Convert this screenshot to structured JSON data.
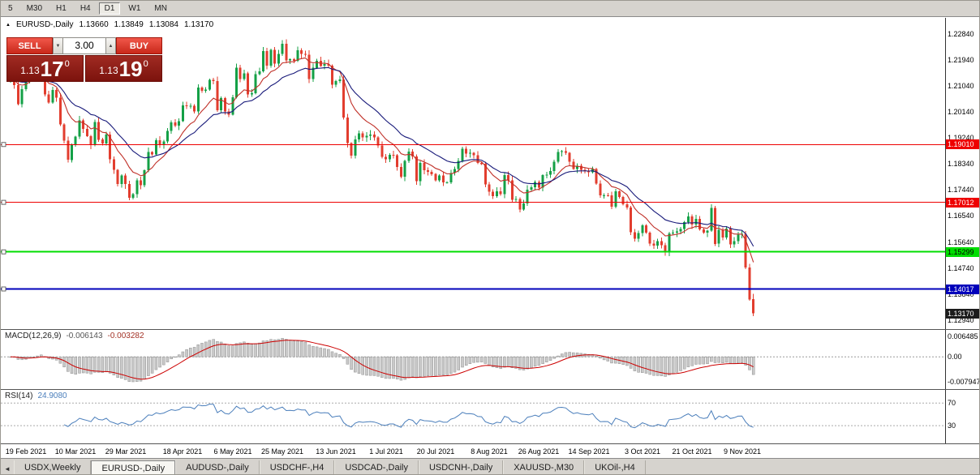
{
  "toolbar": {
    "timeframes": [
      "5",
      "M30",
      "H1",
      "H4",
      "D1",
      "W1",
      "MN"
    ],
    "active": "D1"
  },
  "icons": {
    "ohlc_toggle": "▲",
    "volume_down": "▼",
    "volume_up": "▲",
    "tab_scroll_left": "◄"
  },
  "chart_header": {
    "symbol": "EURUSD-,Daily",
    "open": "1.13660",
    "high": "1.13849",
    "low": "1.13084",
    "close": "1.13170"
  },
  "trade_panel": {
    "sell_label": "SELL",
    "buy_label": "BUY",
    "volume": "3.00",
    "sell_price": {
      "big_figure": "1.13",
      "pips": "17",
      "pipette": "0"
    },
    "buy_price": {
      "big_figure": "1.13",
      "pips": "19",
      "pipette": "0"
    }
  },
  "price_axis": {
    "labels": [
      "1.22840",
      "1.21940",
      "1.21040",
      "1.20140",
      "1.19240",
      "1.18340",
      "1.17440",
      "1.16540",
      "1.15640",
      "1.14740",
      "1.13840",
      "1.12940"
    ]
  },
  "levels": [
    {
      "price": 1.1901,
      "label": "1.19010",
      "color": "#ee0000",
      "text_color": "#ffffff",
      "width": 1
    },
    {
      "price": 1.17012,
      "label": "1.17012",
      "color": "#ee0000",
      "text_color": "#ffffff",
      "width": 1
    },
    {
      "price": 1.15299,
      "label": "1.15299",
      "color": "#00dd00",
      "text_color": "#000000",
      "width": 2
    },
    {
      "price": 1.14017,
      "label": "1.14017",
      "color": "#0000bb",
      "text_color": "#ffffff",
      "width": 2
    }
  ],
  "current_price_tag": {
    "price": 1.1317,
    "label": "1.13170",
    "bg": "#1c1c1c",
    "text_color": "#ffffff"
  },
  "macd_panel": {
    "label": "MACD(12,26,9)",
    "value_main": "-0.006143",
    "value_signal": "-0.003282",
    "axis_labels": [
      "0.006485",
      "0.00",
      "-0.007947"
    ]
  },
  "rsi_panel": {
    "label": "RSI(14)",
    "value": "24.9080",
    "levels": [
      "70",
      "30"
    ],
    "line_color": "#4a7ebb"
  },
  "date_axis": {
    "ticks": [
      {
        "label": "19 Feb 2021",
        "i": 4
      },
      {
        "label": "10 Mar 2021",
        "i": 17
      },
      {
        "label": "29 Mar 2021",
        "i": 30
      },
      {
        "label": "18 Apr 2021",
        "i": 45
      },
      {
        "label": "6 May 2021",
        "i": 58
      },
      {
        "label": "25 May 2021",
        "i": 71
      },
      {
        "label": "13 Jun 2021",
        "i": 85
      },
      {
        "label": "1 Jul 2021",
        "i": 98
      },
      {
        "label": "20 Jul 2021",
        "i": 111
      },
      {
        "label": "8 Aug 2021",
        "i": 125
      },
      {
        "label": "26 Aug 2021",
        "i": 138
      },
      {
        "label": "14 Sep 2021",
        "i": 151
      },
      {
        "label": "3 Oct 2021",
        "i": 165
      },
      {
        "label": "21 Oct 2021",
        "i": 178
      },
      {
        "label": "9 Nov 2021",
        "i": 191
      }
    ]
  },
  "tabs": [
    {
      "label": "USDX,Weekly",
      "active": false
    },
    {
      "label": "EURUSD-,Daily",
      "active": true
    },
    {
      "label": "AUDUSD-,Daily",
      "active": false
    },
    {
      "label": "USDCHF-,H4",
      "active": false
    },
    {
      "label": "USDCAD-,Daily",
      "active": false
    },
    {
      "label": "USDCNH-,Daily",
      "active": false
    },
    {
      "label": "XAUUSD-,M30",
      "active": false
    },
    {
      "label": "UKOil-,H4",
      "active": false
    }
  ],
  "chart_data": {
    "type": "candlestick",
    "symbol": "EURUSD-",
    "timeframe": "Daily",
    "ylim": [
      1.1263,
      1.2339
    ],
    "up_color": "#14a046",
    "down_color": "#e23d2e",
    "ma_fast_color": "#c03028",
    "ma_slow_color": "#181a7a",
    "first_open": 1.212,
    "closes": [
      1.2129,
      1.2107,
      1.204,
      1.2093,
      1.2119,
      1.2158,
      1.215,
      1.2166,
      1.2175,
      1.2074,
      1.2046,
      1.2089,
      1.2063,
      1.197,
      1.1915,
      1.1848,
      1.19,
      1.1928,
      1.1985,
      1.1955,
      1.193,
      1.1899,
      1.1979,
      1.1918,
      1.1905,
      1.1935,
      1.185,
      1.1813,
      1.1765,
      1.1794,
      1.1764,
      1.1717,
      1.173,
      1.1777,
      1.1761,
      1.1812,
      1.1875,
      1.1867,
      1.1916,
      1.1899,
      1.1912,
      1.1948,
      1.1978,
      1.1966,
      1.1982,
      1.2037,
      1.2034,
      1.2035,
      1.2015,
      1.2098,
      1.2087,
      1.2091,
      1.2125,
      1.2121,
      1.202,
      1.2062,
      1.2016,
      1.2004,
      1.2064,
      1.2166,
      1.2128,
      1.2147,
      1.2074,
      1.2079,
      1.2144,
      1.2154,
      1.2224,
      1.2174,
      1.2228,
      1.2181,
      1.2214,
      1.225,
      1.2192,
      1.2196,
      1.219,
      1.2227,
      1.2214,
      1.2212,
      1.2127,
      1.2166,
      1.219,
      1.2173,
      1.2179,
      1.2174,
      1.2108,
      1.2121,
      1.2126,
      1.1995,
      1.1906,
      1.1863,
      1.1919,
      1.194,
      1.1926,
      1.1931,
      1.1936,
      1.1925,
      1.1898,
      1.1858,
      1.185,
      1.1865,
      1.1864,
      1.1823,
      1.179,
      1.1845,
      1.1877,
      1.186,
      1.1774,
      1.1837,
      1.1812,
      1.1807,
      1.1799,
      1.1777,
      1.1794,
      1.177,
      1.177,
      1.1803,
      1.1816,
      1.1845,
      1.1887,
      1.187,
      1.1872,
      1.1864,
      1.1837,
      1.1834,
      1.1763,
      1.1738,
      1.1722,
      1.1739,
      1.1729,
      1.1795,
      1.1777,
      1.171,
      1.1713,
      1.1676,
      1.1697,
      1.1745,
      1.1754,
      1.1771,
      1.1752,
      1.1795,
      1.1797,
      1.1809,
      1.1841,
      1.1875,
      1.1878,
      1.1872,
      1.1842,
      1.1817,
      1.1827,
      1.1813,
      1.181,
      1.1805,
      1.1817,
      1.1766,
      1.1725,
      1.1726,
      1.1725,
      1.1686,
      1.1739,
      1.172,
      1.1695,
      1.1683,
      1.1598,
      1.1576,
      1.1595,
      1.1621,
      1.1596,
      1.1559,
      1.1552,
      1.1567,
      1.1553,
      1.1531,
      1.1593,
      1.1597,
      1.1601,
      1.1609,
      1.1633,
      1.1652,
      1.1624,
      1.1644,
      1.1608,
      1.1597,
      1.1603,
      1.1682,
      1.1558,
      1.1606,
      1.1579,
      1.1611,
      1.1556,
      1.1567,
      1.159,
      1.1592,
      1.1476,
      1.1366,
      1.1317
    ],
    "last_candle": {
      "open": 1.1366,
      "high": 1.13849,
      "low": 1.13084,
      "close": 1.1317
    },
    "macd_ylim": [
      -0.007947,
      0.006485
    ],
    "indicators": {
      "macd": {
        "fast": 12,
        "slow": 26,
        "signal": 9,
        "value": -0.006143,
        "signal_value": -0.003282
      },
      "rsi": {
        "period": 14,
        "value": 24.908,
        "levels": [
          70,
          30
        ]
      }
    }
  }
}
